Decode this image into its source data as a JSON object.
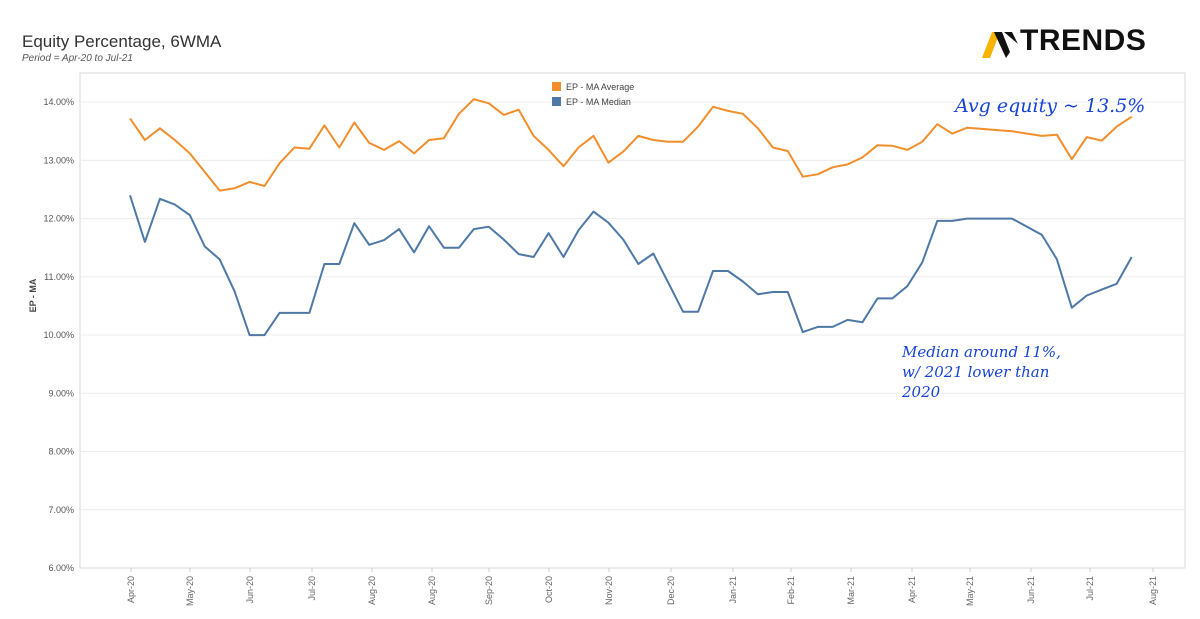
{
  "header": {
    "title": "Equity Percentage,  6WMA",
    "subtitle": "Period = Apr-20 to Jul-21"
  },
  "logo": {
    "text": "TRENDS",
    "colors": {
      "yellow": "#f6b400",
      "dark": "#111111"
    }
  },
  "annotations": {
    "avg": "Avg equity ~ 13.5%",
    "median_lines": [
      "Median around 11%,",
      "w/ 2021 lower than",
      "2020"
    ]
  },
  "chart_data": {
    "type": "line",
    "title": "Equity Percentage,  6WMA",
    "ylabel": "EP - MA",
    "ylim": [
      6,
      14.5
    ],
    "yticks": [
      6,
      7,
      8,
      9,
      10,
      11,
      12,
      13,
      14
    ],
    "ytick_labels": [
      "6.00%",
      "7.00%",
      "8.00%",
      "9.00%",
      "10.00%",
      "11.00%",
      "12.00%",
      "13.00%",
      "14.00%"
    ],
    "month_labels": [
      "Apr-20",
      "May-20",
      "Jun-20",
      "Jul-20",
      "Aug-20",
      "Aug-20",
      "Sep-20",
      "Oct-20",
      "Nov-20",
      "Dec-20",
      "Jan-21",
      "Feb-21",
      "Mar-21",
      "Apr-21",
      "May-21",
      "Jun-21",
      "Jul-21",
      "Aug-21"
    ],
    "legend_position": "top-center",
    "series": [
      {
        "name": "EP - MA Average",
        "color": "#f28e2b",
        "values": [
          13.72,
          13.35,
          13.55,
          13.35,
          13.12,
          12.8,
          12.48,
          12.52,
          12.63,
          12.56,
          12.95,
          13.22,
          13.2,
          13.6,
          13.22,
          13.65,
          13.3,
          13.18,
          13.33,
          13.12,
          13.35,
          13.38,
          13.8,
          14.05,
          13.98,
          13.78,
          13.87,
          13.42,
          13.18,
          12.9,
          13.22,
          13.42,
          12.96,
          13.15,
          13.42,
          13.35,
          13.32,
          13.32,
          13.58,
          13.92,
          13.85,
          13.8,
          13.55,
          13.22,
          13.16,
          12.72,
          12.76,
          12.88,
          12.93,
          13.05,
          13.26,
          13.25,
          13.18,
          13.32,
          13.62,
          13.46,
          13.56,
          13.54,
          13.52,
          13.5,
          13.46,
          13.42,
          13.44,
          13.02,
          13.4,
          13.34,
          13.58,
          13.75
        ]
      },
      {
        "name": "EP - MA Median",
        "color": "#4e79a7",
        "values": [
          12.4,
          11.6,
          12.34,
          12.24,
          12.06,
          11.52,
          11.3,
          10.75,
          10.0,
          10.0,
          10.38,
          10.38,
          10.38,
          11.22,
          11.22,
          11.92,
          11.55,
          11.63,
          11.82,
          11.42,
          11.87,
          11.5,
          11.5,
          11.82,
          11.86,
          11.64,
          11.39,
          11.34,
          11.75,
          11.34,
          11.8,
          12.12,
          11.93,
          11.64,
          11.22,
          11.4,
          10.9,
          10.4,
          10.4,
          11.1,
          11.1,
          10.92,
          10.7,
          10.74,
          10.74,
          10.05,
          10.14,
          10.14,
          10.26,
          10.22,
          10.63,
          10.63,
          10.84,
          11.25,
          11.96,
          11.96,
          12.0,
          12.0,
          12.0,
          12.0,
          11.86,
          11.72,
          11.3,
          10.47,
          10.68,
          10.78,
          10.88,
          11.34
        ]
      }
    ]
  }
}
